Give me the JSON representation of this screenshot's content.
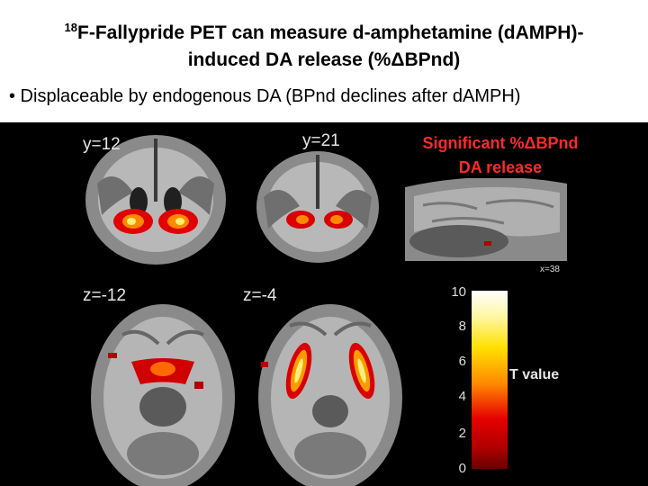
{
  "title": {
    "sup": "18",
    "line1": "F-Fallypride PET can measure d-amphetamine (dAMPH)-",
    "line2": "induced DA release (%ΔBPnd)"
  },
  "bullet": "• Displaceable by endogenous DA (BPnd declines after dAMPH)",
  "panels": {
    "coronal_1": "y=12",
    "coronal_2": "y=21",
    "axial_1": "z=-12",
    "axial_2": "z=-4",
    "sagittal": "x=38"
  },
  "annotation": {
    "line1": "Significant %ΔBPnd",
    "line2": "DA release"
  },
  "colorbar": {
    "label": "T value",
    "ticks": [
      "10",
      "8",
      "6",
      "4",
      "2",
      "0"
    ],
    "colors": [
      "#ffffff",
      "#fff6a0",
      "#ffe000",
      "#ff8a00",
      "#e60000",
      "#6a0000"
    ]
  }
}
